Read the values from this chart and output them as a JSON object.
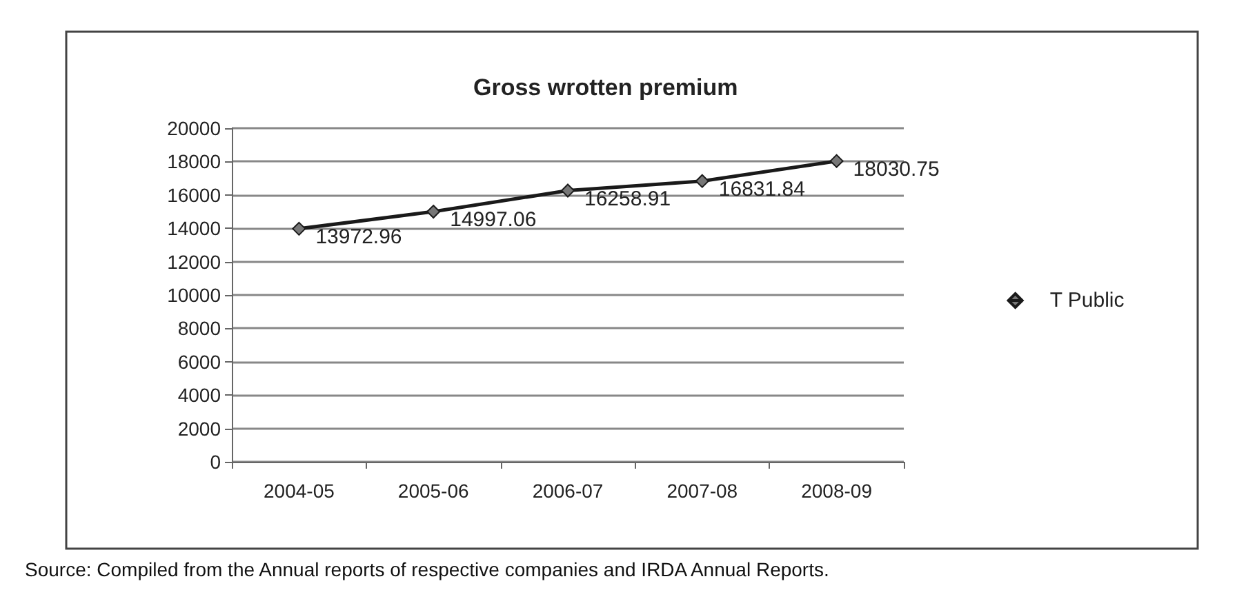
{
  "chart_data": {
    "type": "line",
    "title": "Gross wrotten premium",
    "categories": [
      "2004-05",
      "2005-06",
      "2006-07",
      "2007-08",
      "2008-09"
    ],
    "series": [
      {
        "name": "T Public",
        "color": "#1a1a1a",
        "values": [
          13972.96,
          14997.06,
          16258.91,
          16831.84,
          18030.75
        ]
      }
    ],
    "ylim": [
      0,
      20000
    ],
    "yticks": [
      0,
      2000,
      4000,
      6000,
      8000,
      10000,
      12000,
      14000,
      16000,
      18000,
      20000
    ],
    "grid": "y",
    "legend": "right",
    "marker": "diamond",
    "line_style": "solid",
    "data_labels": true,
    "annotations": [
      "Source: Compiled from the Annual reports of respective companies and IRDA Annual Reports."
    ]
  }
}
